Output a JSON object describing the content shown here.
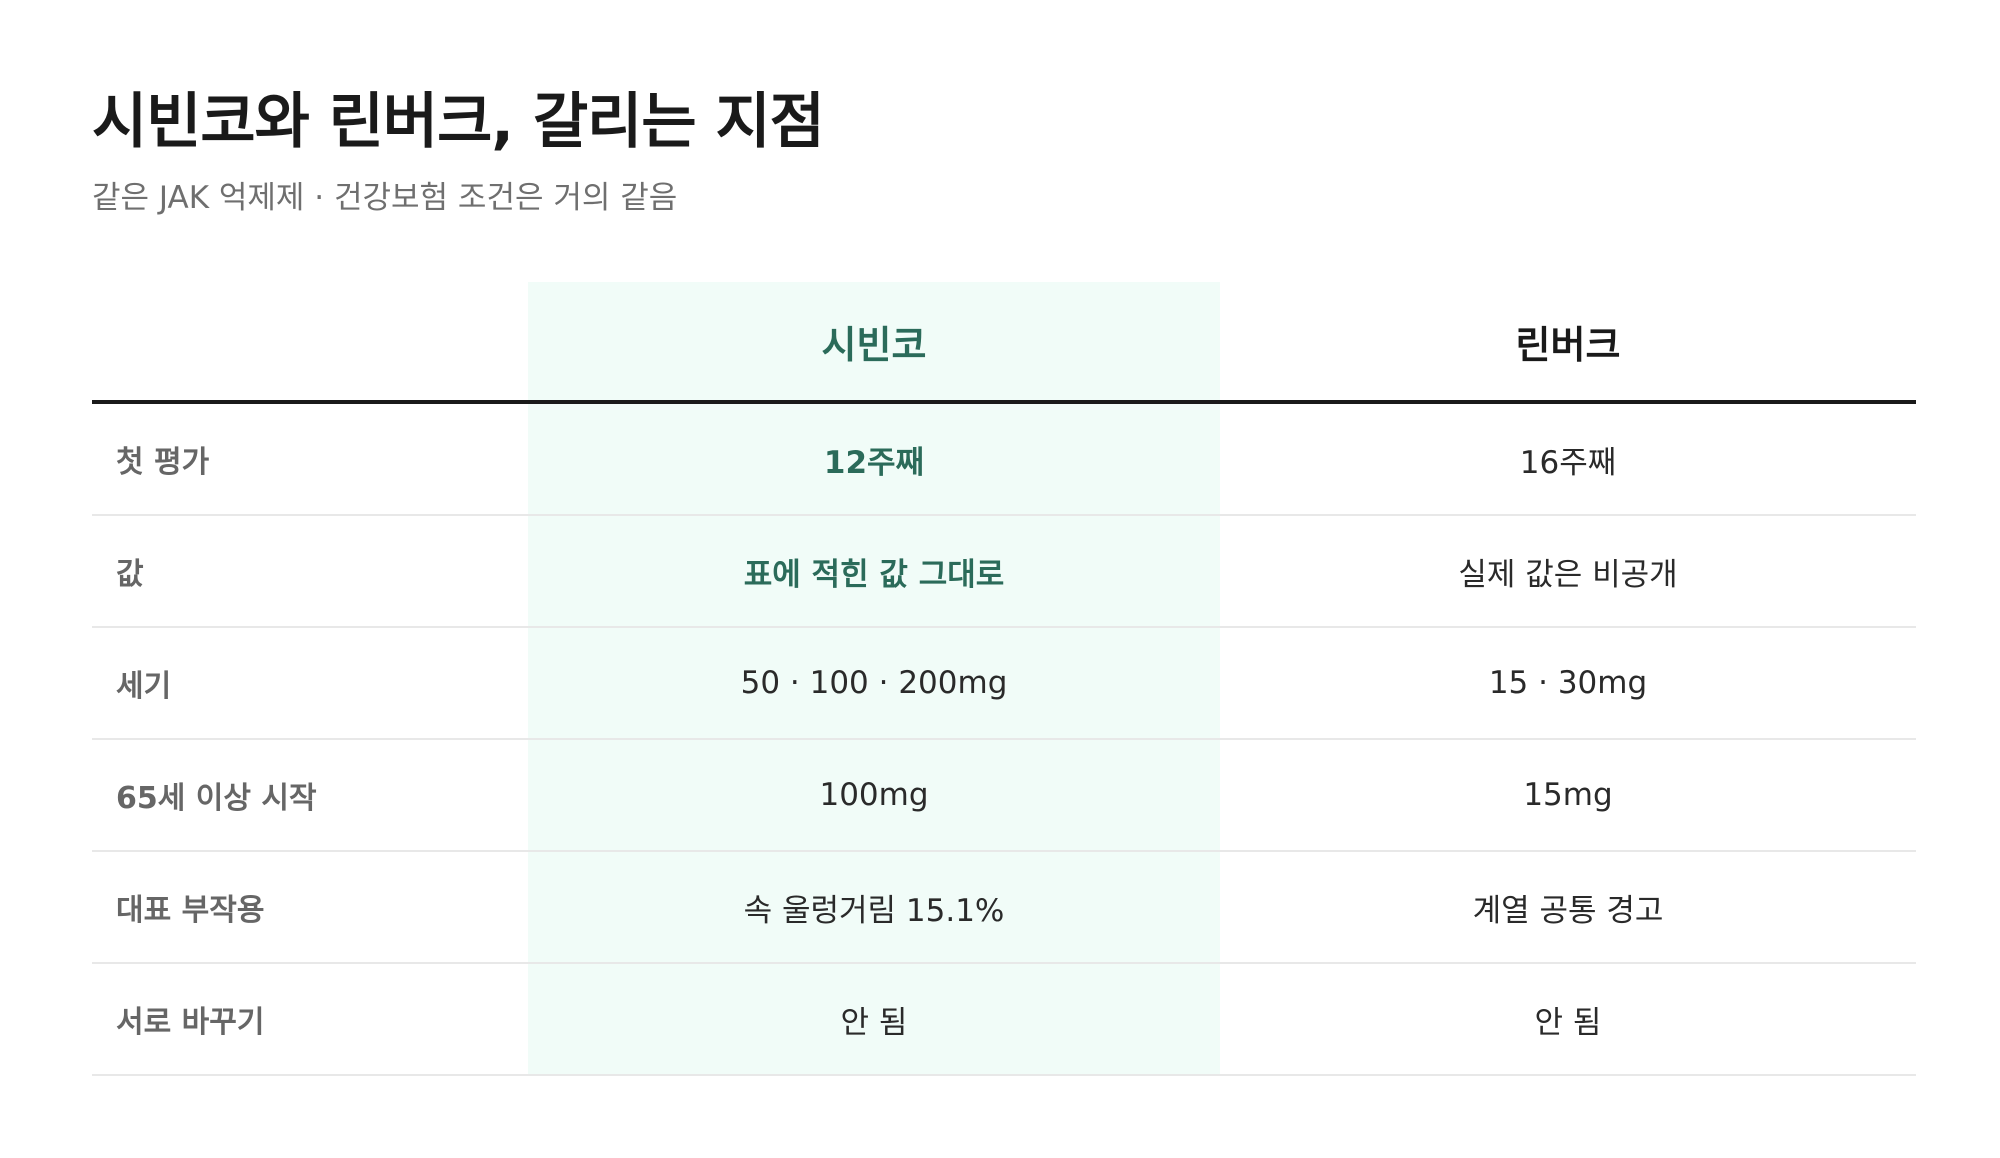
{
  "header": {
    "title": "시빈코와 린버크, 갈리는 지점",
    "subtitle": "같은 JAK 억제제 · 건강보험 조건은 거의 같음"
  },
  "table": {
    "columns": [
      "시빈코",
      "린버크"
    ],
    "rows": [
      {
        "label": "첫 평가",
        "a": "12주째",
        "b": "16주째",
        "a_accent": true
      },
      {
        "label": "값",
        "a": "표에 적힌 값 그대로",
        "b": "실제 값은 비공개",
        "a_accent": true
      },
      {
        "label": "세기",
        "a": "50 · 100 · 200mg",
        "b": "15 · 30mg",
        "a_accent": false
      },
      {
        "label": "65세 이상 시작",
        "a": "100mg",
        "b": "15mg",
        "a_accent": false
      },
      {
        "label": "대표 부작용",
        "a": "속 울렁거림 15.1%",
        "b": "계열 공통 경고",
        "a_accent": false
      },
      {
        "label": "서로 바꾸기",
        "a": "안 됨",
        "b": "안 됨",
        "a_accent": false
      }
    ]
  },
  "colors": {
    "accent": "#2b6b5a",
    "highlight_bg": "#f1fcf8",
    "title": "#1a1a1a",
    "muted": "#6f6f6f"
  }
}
